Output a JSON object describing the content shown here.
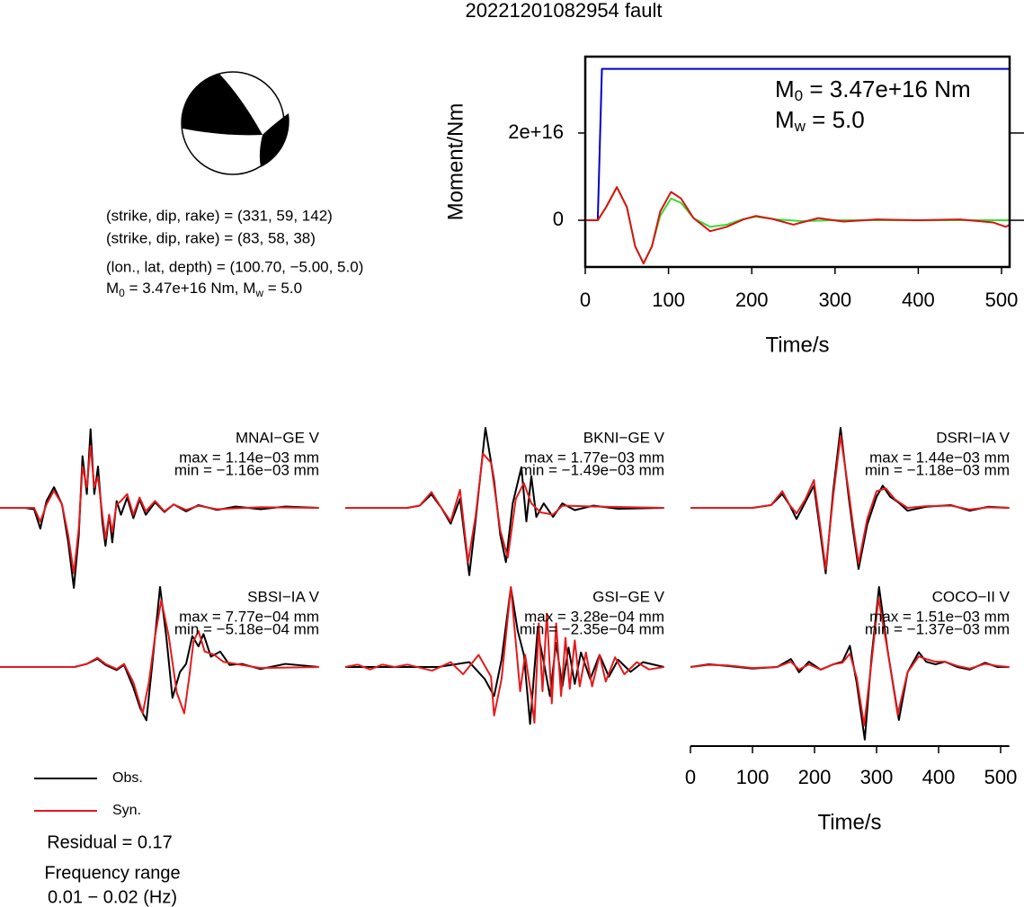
{
  "title": "20221201082954 fault",
  "focal_mechanism": {
    "lines": [
      "(strike, dip, rake) = (331, 59, 142)",
      "(strike, dip, rake) = (83, 58, 38)",
      "(lon., lat, depth) = (100.70, −5.00, 5.0)"
    ],
    "moment_line": {
      "m0": "M",
      "m0_sub": "0",
      "m0_rest": " = 3.47e+16 Nm, M",
      "mw_sub": "w",
      "mw_rest": " = 5.0"
    }
  },
  "residual": "Residual = 0.17",
  "frequency": [
    "Frequency range",
    "0.01 − 0.02 (Hz)"
  ],
  "chart_data": [
    {
      "type": "line",
      "xlabel": "Time/s",
      "ylabel": "Moment/Nm",
      "xlim": [
        0,
        510
      ],
      "xticks": [
        0,
        100,
        200,
        300,
        400,
        500
      ],
      "ylim": [
        -1.07e+16,
        3.75e+16
      ],
      "yticks": [
        0,
        {
          "value": 2e+16,
          "label": "2e+16"
        }
      ],
      "annotations": [
        {
          "text": "M",
          "sub": "0",
          "rest": " = 3.47e+16 Nm"
        },
        {
          "text": "M",
          "sub": "w",
          "rest": " = 5.0"
        }
      ],
      "series": [
        {
          "color": "#0000cc",
          "x": [
            0,
            15,
            20,
            510
          ],
          "values": [
            0,
            0,
            3.47e+16,
            3.47e+16
          ]
        },
        {
          "color": "#33dd33",
          "x": [
            0,
            15,
            25,
            38,
            50,
            60,
            70,
            80,
            90,
            103,
            115,
            130,
            150,
            170,
            190,
            205,
            230,
            260,
            300,
            510
          ],
          "values": [
            0,
            0,
            3000000000000000.0,
            7600000000000000.0,
            3000000000000000.0,
            -6000000000000000.0,
            -9900000000000000.0,
            -6000000000000000.0,
            1000000000000000.0,
            5000000000000000.0,
            4000000000000000.0,
            500000000000000.0,
            -1500000000000000.0,
            -1000000000000000.0,
            300000000000000.0,
            800000000000000.0,
            200000000000000.0,
            -200000000000000.0,
            0,
            0
          ]
        },
        {
          "color": "#dd1111",
          "x": [
            0,
            15,
            25,
            38,
            50,
            60,
            70,
            80,
            90,
            103,
            115,
            130,
            150,
            170,
            190,
            205,
            225,
            250,
            280,
            310,
            350,
            400,
            450,
            490,
            505,
            510
          ],
          "values": [
            0,
            0,
            3000000000000000.0,
            7600000000000000.0,
            3000000000000000.0,
            -6000000000000000.0,
            -9900000000000000.0,
            -6000000000000000.0,
            2000000000000000.0,
            6500000000000000.0,
            5000000000000000.0,
            500000000000000.0,
            -2500000000000000.0,
            -1500000000000000.0,
            200000000000000.0,
            1000000000000000.0,
            300000000000000.0,
            -1000000000000000.0,
            500000000000000.0,
            -300000000000000.0,
            200000000000000.0,
            0,
            200000000000000.0,
            -500000000000000.0,
            -1500000000000000.0,
            -1000000000000000.0
          ]
        }
      ]
    },
    {
      "type": "waveforms",
      "xlabel": "Time/s",
      "xlim": [
        0,
        514
      ],
      "xticks": [
        0,
        100,
        200,
        300,
        400,
        500
      ],
      "legend": [
        {
          "name": "Obs.",
          "color": "#000000"
        },
        {
          "name": "Syn.",
          "color": "#e41a1c"
        }
      ],
      "panels": [
        {
          "station": "MNAI−GE V",
          "max": "max = 1.14e−03 mm",
          "min": "min = −1.16e−03 mm",
          "obs": {
            "x": [
              0,
              40,
              55,
              65,
              75,
              87,
              100,
              110,
              119,
              127,
              133,
              140,
              146,
              152,
              158,
              165,
              170,
              176,
              181,
              188,
              195,
              205,
              215,
              225,
              235,
              250,
              265,
              280,
              300,
              320,
              350,
              380,
              420,
              460,
              514
            ],
            "values": [
              0,
              0,
              -2e-05,
              -0.0003,
              0.0001,
              0.0003,
              5e-05,
              -0.0005,
              -0.00116,
              -0.0004,
              0.00075,
              0.0002,
              0.00114,
              0.0002,
              0.0006,
              -0.0002,
              -0.00055,
              -0.0001,
              -0.0005,
              0.0001,
              -0.0001,
              0.00015,
              -0.00015,
              0.00012,
              -0.0001,
              8e-05,
              -6e-05,
              5e-05,
              -5e-05,
              4e-05,
              -3e-05,
              2e-05,
              -2e-05,
              2e-05,
              0
            ]
          },
          "syn": {
            "x": [
              0,
              40,
              55,
              65,
              75,
              87,
              100,
              110,
              119,
              127,
              133,
              140,
              146,
              152,
              158,
              165,
              170,
              176,
              181,
              188,
              195,
              205,
              215,
              225,
              235,
              250,
              265,
              280,
              300,
              320,
              350,
              420,
              514
            ],
            "values": [
              0,
              0,
              0,
              -0.0002,
              5e-05,
              0.00025,
              5e-05,
              -0.0004,
              -0.00095,
              -0.0003,
              0.0006,
              0.0003,
              0.0009,
              0.0003,
              0.00045,
              -0.0001,
              -0.00045,
              -0.0001,
              -0.00035,
              5e-05,
              0.0001,
              0.0002,
              -0.0001,
              0.00015,
              -5e-05,
              0.0001,
              -5e-05,
              5e-05,
              -3e-05,
              3e-05,
              -2e-05,
              1e-05,
              0
            ]
          }
        },
        {
          "station": "BKNI−GE V",
          "max": "max = 1.77e−03 mm",
          "min": "min = −1.49e−03 mm",
          "obs": {
            "x": [
              0,
              100,
              120,
              139,
              155,
              170,
              185,
              200,
              210,
              226,
              240,
              250,
              259,
              270,
              284,
              292,
              300,
              308,
              320,
              335,
              350,
              370,
              400,
              440,
              514
            ],
            "values": [
              0,
              0,
              5e-05,
              0.0003,
              0,
              -0.00035,
              0.0002,
              -0.00149,
              -0.0003,
              0.00177,
              0.0006,
              -0.0006,
              -0.0012,
              0.0001,
              0.0009,
              -0.0003,
              0.0007,
              -0.0002,
              0.0001,
              -0.0002,
              0.0001,
              -5e-05,
              5e-05,
              -2e-05,
              0
            ]
          },
          "syn": {
            "x": [
              0,
              100,
              120,
              139,
              155,
              170,
              185,
              198,
              210,
              222,
              235,
              250,
              262,
              275,
              288,
              300,
              315,
              335,
              350,
              400,
              514
            ],
            "values": [
              0,
              0,
              5e-05,
              0.00035,
              0,
              -0.0003,
              0.0004,
              -0.0012,
              -0.0002,
              0.0012,
              0.001,
              -0.0005,
              -0.0011,
              0.0002,
              0.00055,
              0.0001,
              -0.0001,
              -0.00015,
              5e-05,
              3e-05,
              0
            ]
          }
        },
        {
          "station": "DSRI−IA V",
          "max": "max = 1.44e−03 mm",
          "min": "min = −1.18e−03 mm",
          "obs": {
            "x": [
              0,
              100,
              130,
              148,
              160,
              171,
              185,
              199,
              210,
              218,
              230,
              242,
              255,
              262,
              271,
              285,
              300,
              310,
              322,
              335,
              350,
              380,
              420,
              450,
              480,
              514
            ],
            "values": [
              0,
              0,
              5e-05,
              0.00025,
              5e-05,
              -0.0002,
              0.0001,
              0.0004,
              -0.0005,
              -0.00118,
              0.0003,
              0.00144,
              0.0002,
              -0.0004,
              -0.0011,
              -0.0003,
              0.0002,
              0.0004,
              0.0002,
              0.0001,
              -5e-05,
              2e-05,
              5e-05,
              -5e-05,
              2e-05,
              0
            ]
          },
          "syn": {
            "x": [
              0,
              100,
              130,
              148,
              160,
              171,
              185,
              199,
              210,
              218,
              230,
              242,
              255,
              262,
              271,
              285,
              300,
              315,
              330,
              350,
              380,
              420,
              450,
              480,
              514
            ],
            "values": [
              0,
              0,
              5e-05,
              0.0003,
              5e-05,
              -0.0001,
              0.00015,
              0.0005,
              -0.0004,
              -0.0011,
              0.0002,
              0.0013,
              0.0003,
              -0.0003,
              -0.001,
              -0.0002,
              0.0003,
              0.00035,
              0.00015,
              0,
              3e-05,
              4e-05,
              -3e-05,
              1e-05,
              0
            ]
          }
        },
        {
          "station": "SBSI−IA V",
          "max": "max = 7.77e−04 mm",
          "min": "min = −5.18e−04 mm",
          "obs": {
            "x": [
              0,
              120,
              140,
              157,
              170,
              188,
              200,
              215,
              226,
              236,
              245,
              258,
              268,
              278,
              290,
              300,
              310,
              320,
              328,
              340,
              355,
              370,
              390,
              420,
              460,
              514
            ],
            "values": [
              0,
              0,
              3e-05,
              8e-05,
              2e-05,
              -3e-05,
              2e-05,
              -0.0002,
              -0.0004,
              -0.000518,
              0,
              0.000777,
              0.0003,
              -0.0003,
              -5e-05,
              3e-05,
              0.0003,
              0.0002,
              0.00032,
              0.0001,
              0.00015,
              2e-05,
              3e-05,
              -2e-05,
              3e-05,
              0
            ]
          },
          "syn": {
            "x": [
              0,
              120,
              140,
              157,
              170,
              188,
              200,
              215,
              230,
              240,
              250,
              260,
              272,
              285,
              297,
              305,
              312,
              320,
              330,
              345,
              360,
              390,
              420,
              514
            ],
            "values": [
              0,
              0,
              3e-05,
              9e-05,
              3e-05,
              -2e-05,
              3e-05,
              -0.00015,
              -0.00045,
              -0.00015,
              0.0003,
              0.00065,
              0.0003,
              -0.00025,
              -0.00045,
              -0.0001,
              0.00025,
              0.00035,
              0.00015,
              0.00012,
              5e-05,
              2e-05,
              -1e-05,
              0
            ]
          }
        },
        {
          "station": "GSI−GE V",
          "max": "max = 3.28e−04 mm",
          "min": "min = −2.35e−04 mm",
          "obs": {
            "x": [
              0,
              150,
              200,
              225,
              240,
              252,
              267,
              278,
              288,
              298,
              310,
              320,
              330,
              340,
              350,
              360,
              370,
              380,
              395,
              410,
              425,
              440,
              460,
              480,
              514
            ],
            "values": [
              0,
              0,
              2e-05,
              -5e-05,
              -0.00012,
              3e-05,
              0.000328,
              0.00015,
              5e-05,
              -0.000235,
              0.00015,
              2e-05,
              -0.00012,
              0.0001,
              -8e-05,
              8e-05,
              -7e-05,
              6e-05,
              -5e-05,
              5e-05,
              -4e-05,
              3e-05,
              -2e-05,
              2e-05,
              0
            ]
          },
          "syn": {
            "x": [
              0,
              20,
              40,
              60,
              80,
              100,
              140,
              170,
              190,
              215,
              235,
              240,
              252,
              267,
              275,
              282,
              290,
              300,
              305,
              312,
              318,
              325,
              333,
              340,
              348,
              355,
              362,
              370,
              378,
              388,
              398,
              410,
              420,
              435,
              450,
              470,
              490,
              514
            ],
            "values": [
              0,
              1e-05,
              -1e-05,
              1e-05,
              0,
              1e-05,
              -1.5e-05,
              2e-05,
              -3e-05,
              5e-05,
              -4e-05,
              -0.0002,
              -5e-05,
              0.00033,
              0.0001,
              -0.0001,
              5e-05,
              -0.00012,
              -0.00023,
              0.00018,
              -0.0001,
              0.00022,
              -0.00015,
              0.00018,
              -0.00012,
              0.00012,
              -9e-05,
              0.00011,
              -8e-05,
              6e-05,
              -8e-05,
              5e-05,
              -6e-05,
              4e-05,
              -3e-05,
              2e-05,
              -1e-05,
              0
            ]
          }
        },
        {
          "station": "COCO−II V",
          "max": "max = 1.51e−03 mm",
          "min": "min = −1.37e−03 mm",
          "obs": {
            "x": [
              0,
              30,
              60,
              100,
              140,
              162,
              175,
              191,
              210,
              230,
              245,
              257,
              268,
              281,
              292,
              304,
              318,
              336,
              350,
              368,
              380,
              395,
              410,
              430,
              450,
              475,
              495,
              514
            ],
            "values": [
              0,
              5e-05,
              2e-05,
              -3e-05,
              0,
              0.00015,
              -0.0001,
              0.0001,
              -5e-05,
              5e-05,
              0.0001,
              0.0004,
              -0.0003,
              -0.00137,
              0.0002,
              0.00151,
              0.0003,
              -0.001,
              -0.0001,
              0.00028,
              0.0001,
              5e-05,
              0.0001,
              0,
              -5e-05,
              8e-05,
              0,
              0
            ]
          },
          "syn": {
            "x": [
              0,
              30,
              60,
              100,
              140,
              162,
              175,
              191,
              210,
              230,
              245,
              257,
              268,
              280,
              292,
              303,
              318,
              334,
              350,
              368,
              380,
              395,
              410,
              430,
              450,
              475,
              495,
              514
            ],
            "values": [
              0,
              4e-05,
              3e-05,
              -2e-05,
              0,
              0.0001,
              -5e-05,
              5e-05,
              -5e-05,
              5e-05,
              8e-05,
              0.00025,
              -0.0002,
              -0.0011,
              0.0001,
              0.0013,
              0.0003,
              -0.0009,
              -0.0001,
              0.0002,
              0.00015,
              0.0001,
              0.0001,
              2e-05,
              -3e-05,
              6e-05,
              2e-05,
              0
            ]
          }
        }
      ]
    }
  ]
}
